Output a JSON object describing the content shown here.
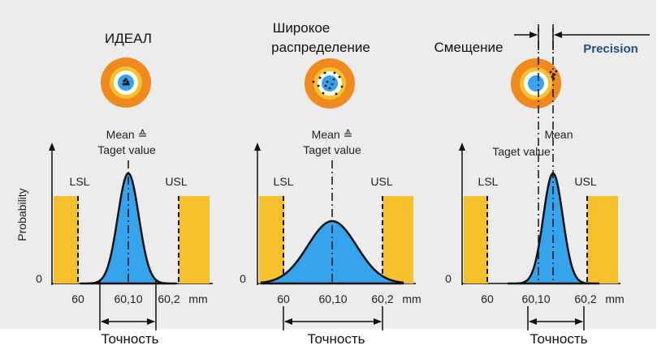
{
  "colors": {
    "background": "#ececec",
    "tolerance_zone": "#f6c12c",
    "distribution_fill": "#35a4ec",
    "target_outer": "#f08a1f",
    "target_middle": "#f6c12c",
    "target_bull": "#35a4ec",
    "precision_text": "#1f4e8c"
  },
  "common": {
    "y_axis_label": "Probability",
    "zero_label": "0",
    "lsl_label": "LSL",
    "usl_label": "USL",
    "unit": "mm",
    "accuracy_label": "Точность"
  },
  "panels": [
    {
      "title": "ИДЕАЛ",
      "center_label_line1": "Mean ≙",
      "center_label_line2": "Taget value",
      "x_ticks": [
        "60",
        "60,10",
        "60,2"
      ]
    },
    {
      "title_line1": "Широкое",
      "title_line2": "распределение",
      "center_label_line1": "Mean ≙",
      "center_label_line2": "Taget value",
      "x_ticks": [
        "60",
        "60,10",
        "60,2"
      ]
    },
    {
      "title": "Смещение",
      "precision_label": "Precision",
      "mean_label": "Mean",
      "target_label": "Taget value",
      "x_ticks": [
        "60",
        "60,10",
        "60,2"
      ]
    }
  ]
}
